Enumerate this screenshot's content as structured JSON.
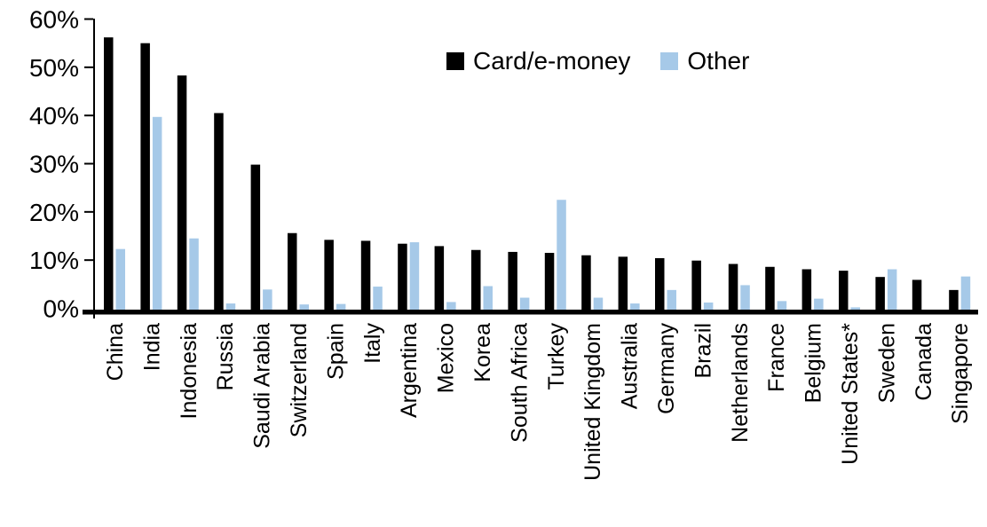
{
  "chart_data": {
    "type": "bar",
    "title": "",
    "categories": [
      "China",
      "India",
      "Indonesia",
      "Russia",
      "Saudi Arabia",
      "Switzerland",
      "Spain",
      "Italy",
      "Argentina",
      "Mexico",
      "Korea",
      "South Africa",
      "Turkey",
      "United Kingdom",
      "Australia",
      "Germany",
      "Brazil",
      "Netherlands",
      "France",
      "Belgium",
      "United States*",
      "Sweden",
      "Canada",
      "Singapore"
    ],
    "series": [
      {
        "name": "Card/e-money",
        "color": "#000000",
        "values": [
          56.2,
          55.0,
          48.3,
          40.5,
          29.8,
          15.6,
          14.2,
          14.0,
          13.4,
          12.9,
          12.1,
          11.7,
          11.5,
          11.0,
          10.7,
          10.4,
          9.9,
          9.2,
          8.6,
          8.1,
          7.8,
          6.5,
          5.9,
          3.8
        ]
      },
      {
        "name": "Other",
        "color": "#A6C9E8",
        "values": [
          12.3,
          39.7,
          14.5,
          1.0,
          3.9,
          0.8,
          0.9,
          4.5,
          13.7,
          1.3,
          4.6,
          2.2,
          22.5,
          2.2,
          1.0,
          3.8,
          1.2,
          4.8,
          1.5,
          2.0,
          0.2,
          8.1,
          0.0,
          6.6
        ]
      }
    ],
    "y_axis": {
      "ticks": [
        "0%",
        "10%",
        "20%",
        "30%",
        "40%",
        "50%",
        "60%"
      ],
      "min": 0,
      "max": 60,
      "unit": "%"
    },
    "x_axis": {
      "label_rotation_degrees": -90
    },
    "legend_position": "top-center",
    "grid": false,
    "axis_color": "#000000"
  }
}
